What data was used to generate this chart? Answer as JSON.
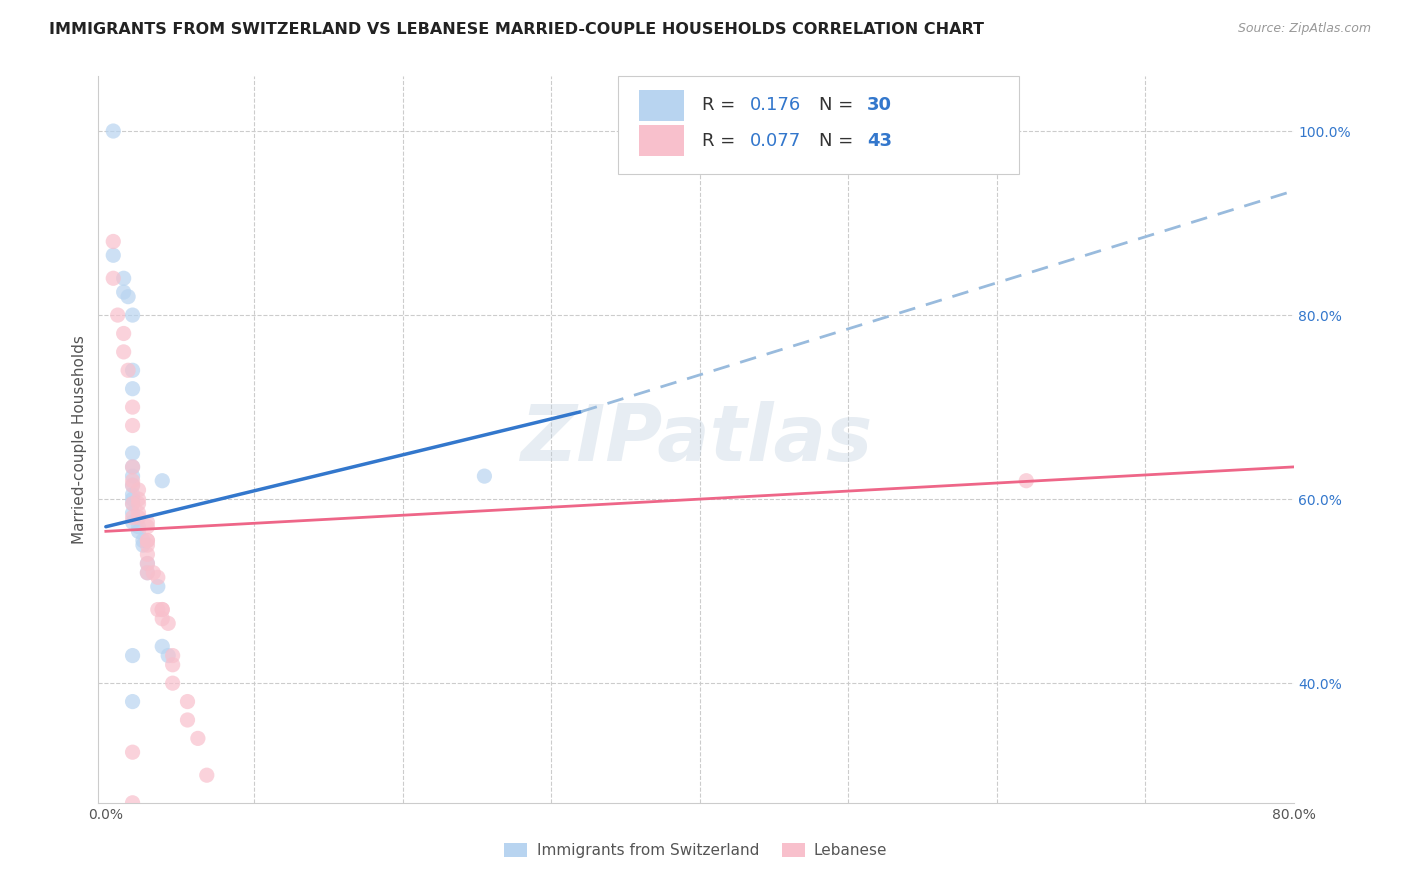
{
  "title": "IMMIGRANTS FROM SWITZERLAND VS LEBANESE MARRIED-COUPLE HOUSEHOLDS CORRELATION CHART",
  "source": "Source: ZipAtlas.com",
  "ylabel": "Married-couple Households",
  "xlim": [
    -0.005,
    0.8
  ],
  "ylim": [
    0.27,
    1.06
  ],
  "legend1_label_static": "R = ",
  "legend1_R": "0.176",
  "legend1_N_label": "  N = ",
  "legend1_N": "30",
  "legend2_label_static": "R = ",
  "legend2_R": "0.077",
  "legend2_N_label": "  N = ",
  "legend2_N": "43",
  "legend1_color": "#b8d4f0",
  "legend2_color": "#f8c0cc",
  "trend1_color": "#3377cc",
  "trend2_color": "#ee6688",
  "trend1_dashed_color": "#99bbdd",
  "scatter_alpha": 0.7,
  "scatter_size": 120,
  "background_color": "#ffffff",
  "grid_color": "#cccccc",
  "title_fontsize": 11.5,
  "axis_label_fontsize": 11,
  "tick_fontsize": 10,
  "watermark_text": "ZIPatlas",
  "watermark_color": "#bbccdd",
  "watermark_alpha": 0.35,
  "swiss_x": [
    0.005,
    0.005,
    0.012,
    0.012,
    0.015,
    0.018,
    0.018,
    0.018,
    0.018,
    0.018,
    0.018,
    0.018,
    0.018,
    0.018,
    0.018,
    0.018,
    0.018,
    0.022,
    0.022,
    0.025,
    0.025,
    0.028,
    0.028,
    0.035,
    0.038,
    0.042,
    0.255,
    0.038,
    0.018,
    0.018
  ],
  "swiss_y": [
    1.0,
    0.865,
    0.84,
    0.825,
    0.82,
    0.8,
    0.74,
    0.72,
    0.65,
    0.635,
    0.625,
    0.615,
    0.605,
    0.6,
    0.595,
    0.585,
    0.575,
    0.57,
    0.565,
    0.555,
    0.55,
    0.53,
    0.52,
    0.505,
    0.44,
    0.43,
    0.625,
    0.62,
    0.38,
    0.43
  ],
  "lebanese_x": [
    0.005,
    0.005,
    0.008,
    0.012,
    0.012,
    0.015,
    0.018,
    0.018,
    0.018,
    0.018,
    0.018,
    0.022,
    0.022,
    0.022,
    0.022,
    0.022,
    0.028,
    0.028,
    0.028,
    0.028,
    0.028,
    0.028,
    0.028,
    0.032,
    0.035,
    0.035,
    0.038,
    0.038,
    0.038,
    0.042,
    0.045,
    0.045,
    0.045,
    0.055,
    0.055,
    0.062,
    0.068,
    0.018,
    0.018,
    0.028,
    0.62,
    0.018,
    0.018
  ],
  "lebanese_y": [
    0.88,
    0.84,
    0.8,
    0.78,
    0.76,
    0.74,
    0.7,
    0.68,
    0.635,
    0.62,
    0.615,
    0.61,
    0.6,
    0.595,
    0.585,
    0.58,
    0.575,
    0.57,
    0.555,
    0.55,
    0.54,
    0.53,
    0.52,
    0.52,
    0.515,
    0.48,
    0.48,
    0.48,
    0.47,
    0.465,
    0.43,
    0.42,
    0.4,
    0.38,
    0.36,
    0.34,
    0.3,
    0.595,
    0.58,
    0.555,
    0.62,
    0.27,
    0.325
  ],
  "swiss_trend_x0": 0.0,
  "swiss_trend_y0": 0.57,
  "swiss_trend_x_split": 0.32,
  "swiss_trend_y_split": 0.695,
  "swiss_trend_x1": 0.8,
  "swiss_trend_y1": 0.935,
  "lebanese_trend_x0": 0.0,
  "lebanese_trend_y0": 0.565,
  "lebanese_trend_x1": 0.8,
  "lebanese_trend_y1": 0.635,
  "x_tick_positions": [
    0.0,
    0.1,
    0.2,
    0.3,
    0.4,
    0.5,
    0.6,
    0.7,
    0.8
  ],
  "x_tick_labels": [
    "0.0%",
    "",
    "",
    "",
    "",
    "",
    "",
    "",
    "80.0%"
  ],
  "y_tick_positions": [
    0.4,
    0.6,
    0.8,
    1.0
  ],
  "y_tick_labels": [
    "40.0%",
    "60.0%",
    "80.0%",
    "100.0%"
  ],
  "bottom_legend_labels": [
    "Immigrants from Switzerland",
    "Lebanese"
  ],
  "bottom_legend_colors": [
    "#b8d4f0",
    "#f8c0cc"
  ],
  "bottom_legend_edge_colors": [
    "#3377cc",
    "#ee6688"
  ]
}
